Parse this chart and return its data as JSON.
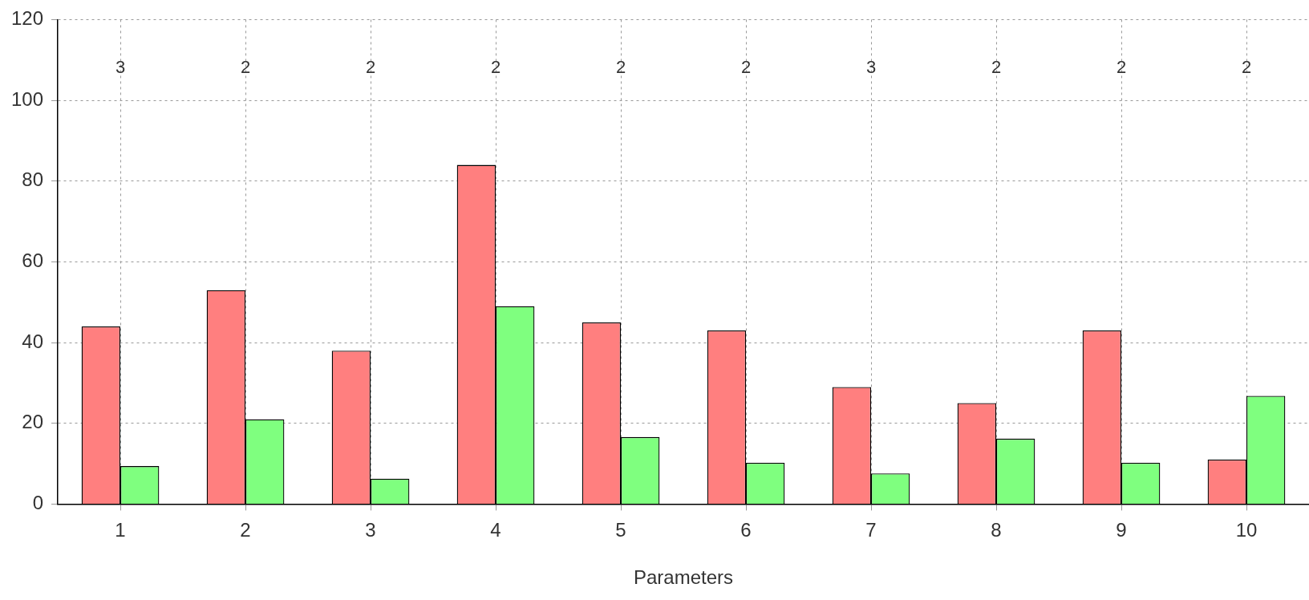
{
  "chart_data": {
    "type": "bar",
    "xlabel": "Parameters",
    "categories": [
      "1",
      "2",
      "3",
      "4",
      "5",
      "6",
      "7",
      "8",
      "9",
      "10"
    ],
    "series": [
      {
        "color": "#ff7f7f",
        "values": [
          44,
          53,
          38,
          84,
          45,
          43,
          29,
          25,
          43,
          11
        ]
      },
      {
        "color": "#7fff7f",
        "values": [
          9.4,
          21,
          6.3,
          49,
          16.6,
          10.2,
          7.6,
          16.2,
          10.2,
          26.8
        ]
      }
    ],
    "ylim": [
      0,
      120
    ],
    "yticks": [
      0,
      20,
      40,
      60,
      80,
      100,
      120
    ],
    "grid": true,
    "legend": false,
    "annotations": [
      "3",
      "2",
      "2",
      "2",
      "2",
      "2",
      "3",
      "2",
      "2",
      "2"
    ]
  }
}
